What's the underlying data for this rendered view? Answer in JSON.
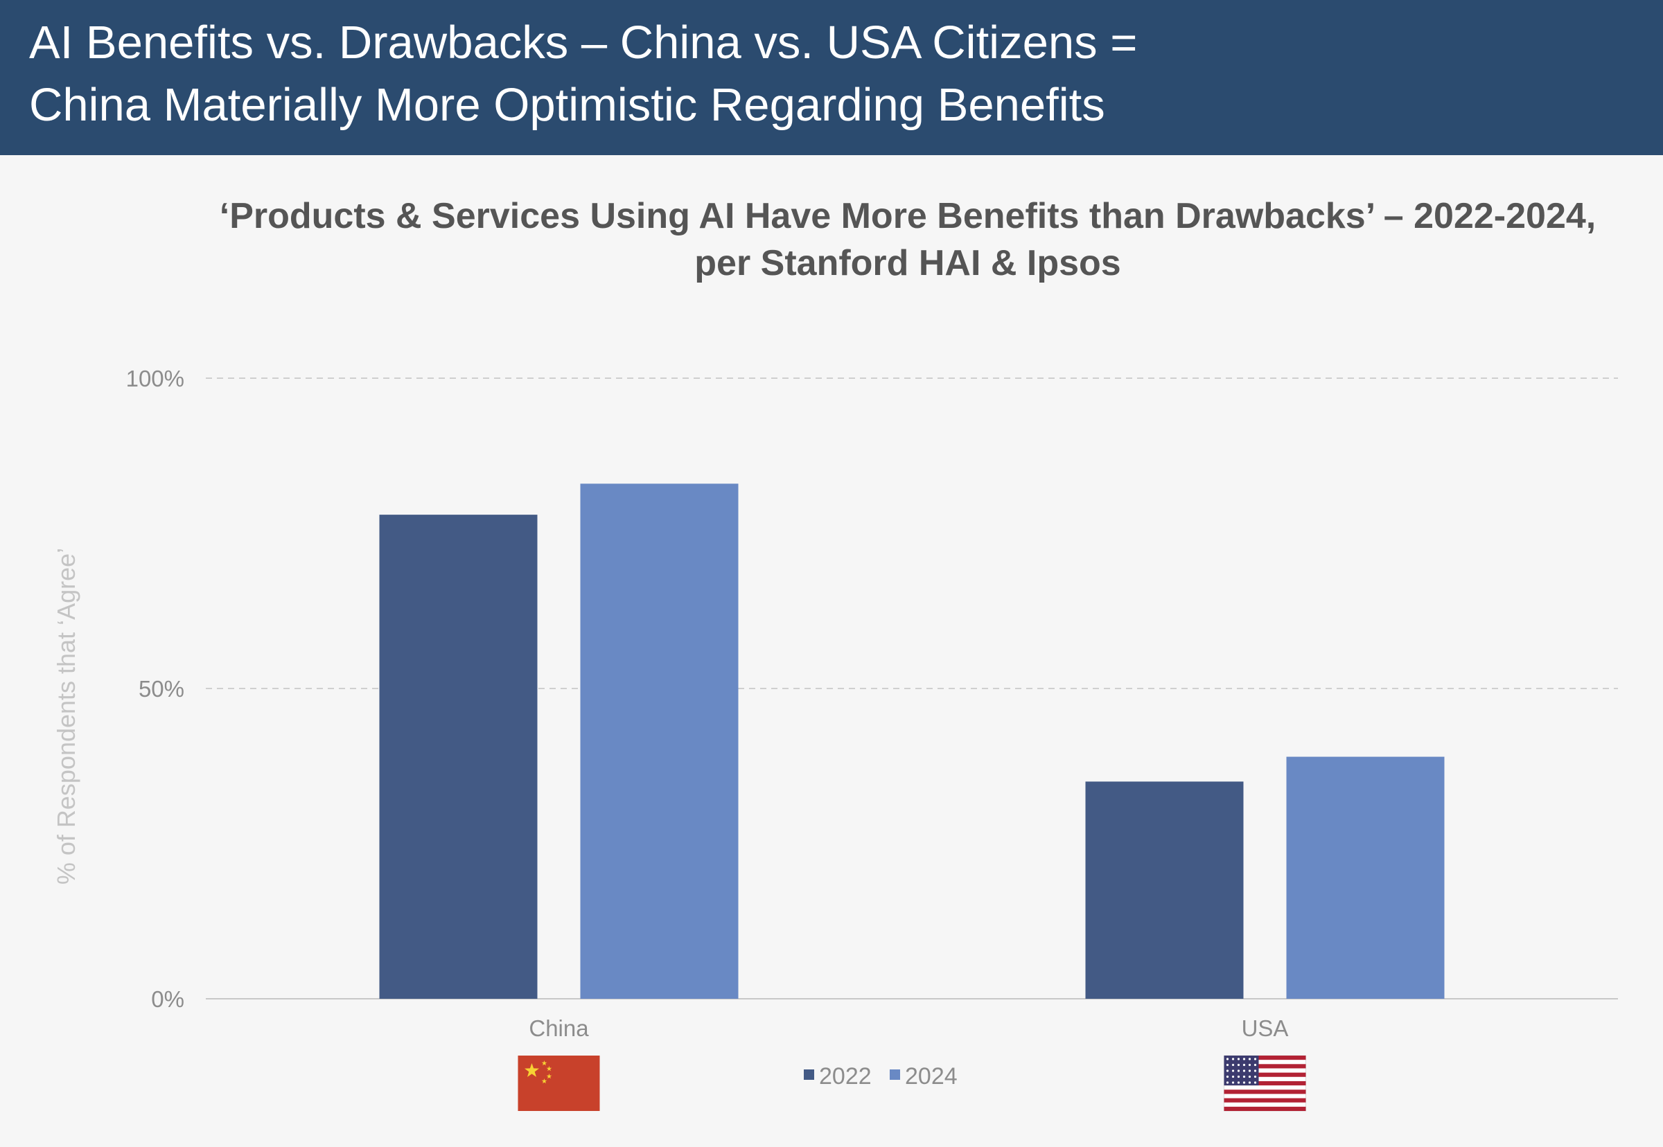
{
  "header": {
    "title_line1": "AI Benefits vs. Drawbacks – China vs. USA Citizens =",
    "title_line2": "China Materially More Optimistic Regarding Benefits"
  },
  "chart_data": {
    "type": "bar",
    "title_line1": "‘Products & Services Using AI Have More Benefits than Drawbacks’ – 2022-2024,",
    "title_line2": "per Stanford HAI & Ipsos",
    "ylabel": "% of Respondents that ‘Agree’",
    "xlabel": "",
    "categories": [
      "China",
      "USA"
    ],
    "series": [
      {
        "name": "2022",
        "values": [
          78,
          35
        ],
        "color": "#435a85"
      },
      {
        "name": "2024",
        "values": [
          83,
          39
        ],
        "color": "#6989c4"
      }
    ],
    "ylim": [
      0,
      100
    ],
    "yticks": [
      0,
      50,
      100
    ],
    "ytick_labels": [
      "0%",
      "50%",
      "100%"
    ],
    "grid": true,
    "legend_position": "bottom-center",
    "category_icons": [
      "china-flag-icon",
      "usa-flag-icon"
    ]
  },
  "colors": {
    "header_bg": "#2b4b6f",
    "page_bg": "#f6f6f6",
    "gridline": "#cfcfcf",
    "axis_text": "#8c8c8c"
  }
}
